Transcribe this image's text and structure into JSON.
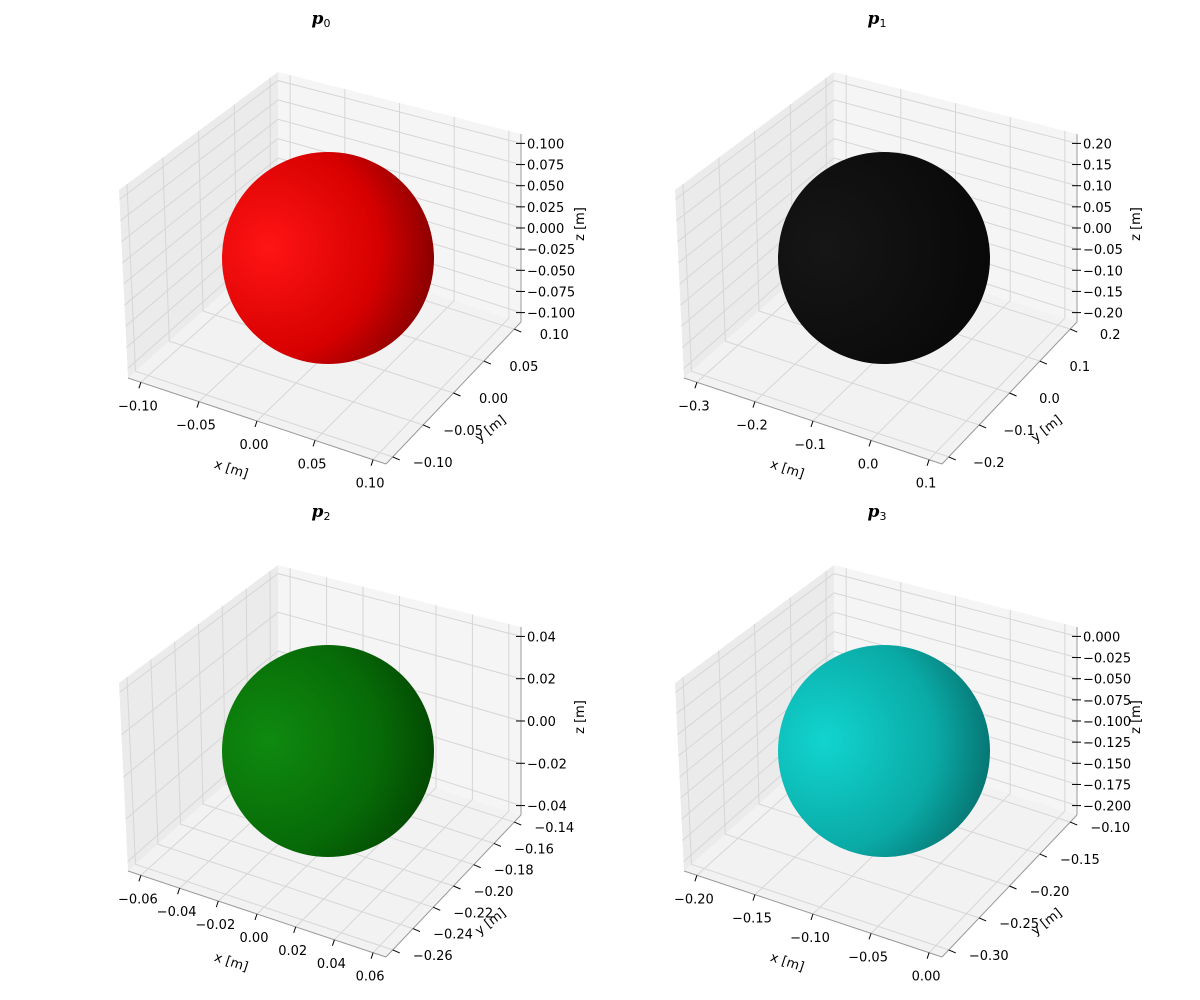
{
  "figure": {
    "subplots": [
      {
        "title": "p",
        "subscript": "0",
        "color": "#ff0000"
      },
      {
        "title": "p",
        "subscript": "1",
        "color": "#000000"
      },
      {
        "title": "p",
        "subscript": "2",
        "color": "#008000"
      },
      {
        "title": "p",
        "subscript": "3",
        "color": "#00bfbf"
      }
    ]
  },
  "chart_data": [
    {
      "type": "3d-surface",
      "title": "p0",
      "surface": "sphere",
      "color": "#ff0000",
      "xlabel": "x [m]",
      "ylabel": "y [m]",
      "zlabel": "z [m]",
      "xlim": [
        -0.13,
        0.13
      ],
      "ylim": [
        -0.13,
        0.13
      ],
      "zlim": [
        -0.1,
        0.1
      ],
      "xticks": [
        "−0.10",
        "−0.05",
        "0.00",
        "0.05",
        "0.10"
      ],
      "yticks": [
        "−0.10",
        "−0.05",
        "0.00",
        "0.05",
        "0.10"
      ],
      "zticks": [
        "−0.100",
        "−0.075",
        "−0.050",
        "−0.025",
        "0.000",
        "0.025",
        "0.050",
        "0.075",
        "0.100"
      ],
      "grid": true
    },
    {
      "type": "3d-surface",
      "title": "p1",
      "surface": "sphere",
      "color": "#000000",
      "xlabel": "x [m]",
      "ylabel": "y [m]",
      "zlabel": "z [m]",
      "xlim": [
        -0.35,
        0.15
      ],
      "ylim": [
        -0.25,
        0.25
      ],
      "zlim": [
        -0.2,
        0.2
      ],
      "xticks": [
        "−0.3",
        "−0.2",
        "−0.1",
        "0.0",
        "0.1"
      ],
      "yticks": [
        "−0.2",
        "−0.1",
        "0.0",
        "0.1",
        "0.2"
      ],
      "zticks": [
        "−0.20",
        "−0.15",
        "−0.10",
        "−0.05",
        "0.00",
        "0.05",
        "0.10",
        "0.15",
        "0.20"
      ],
      "grid": true
    },
    {
      "type": "3d-surface",
      "title": "p2",
      "surface": "sphere",
      "color": "#008000",
      "xlabel": "x [m]",
      "ylabel": "y [m]",
      "zlabel": "z [m]",
      "xlim": [
        -0.065,
        0.065
      ],
      "ylim": [
        -0.265,
        -0.135
      ],
      "zlim": [
        -0.05,
        0.05
      ],
      "xticks": [
        "−0.06",
        "−0.04",
        "−0.02",
        "0.00",
        "0.02",
        "0.04",
        "0.06"
      ],
      "yticks": [
        "−0.26",
        "−0.24",
        "−0.22",
        "−0.20",
        "−0.18",
        "−0.16",
        "−0.14"
      ],
      "zticks": [
        "−0.04",
        "−0.02",
        "0.00",
        "0.02",
        "0.04"
      ],
      "grid": true
    },
    {
      "type": "3d-surface",
      "title": "p3",
      "surface": "sphere",
      "color": "#00bfbf",
      "xlabel": "x [m]",
      "ylabel": "y [m]",
      "zlabel": "z [m]",
      "xlim": [
        -0.225,
        0.025
      ],
      "ylim": [
        -0.325,
        -0.075
      ],
      "zlim": [
        -0.2,
        0.0
      ],
      "xticks": [
        "−0.20",
        "−0.15",
        "−0.10",
        "−0.05",
        "0.00"
      ],
      "yticks": [
        "−0.30",
        "−0.25",
        "−0.20",
        "−0.15",
        "−0.10"
      ],
      "zticks": [
        "−0.200",
        "−0.175",
        "−0.150",
        "−0.125",
        "−0.100",
        "−0.075",
        "−0.050",
        "−0.025",
        "0.000"
      ],
      "grid": true
    }
  ]
}
